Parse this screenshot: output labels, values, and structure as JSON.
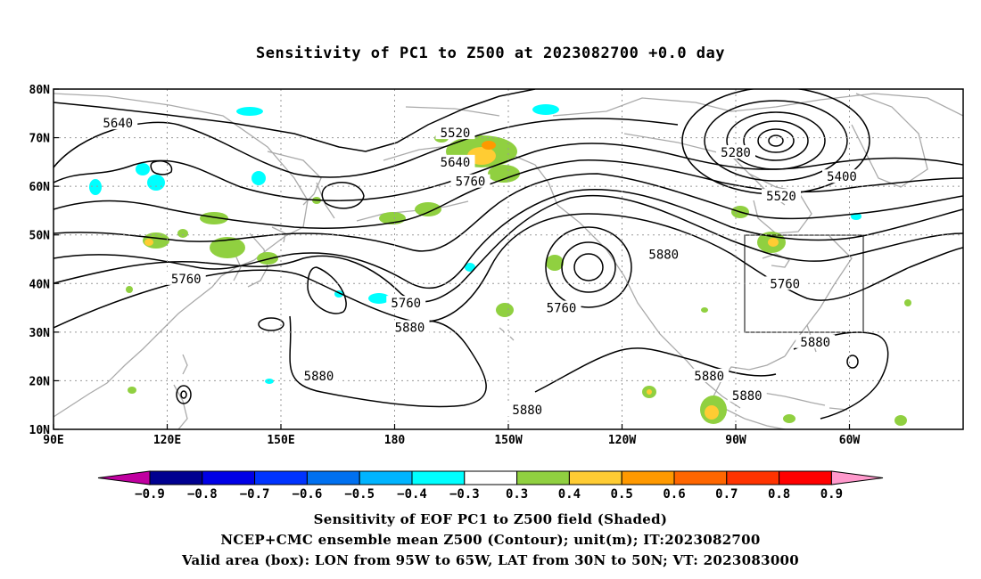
{
  "title": "Sensitivity of PC1 to Z500 at 2023082700 +0.0 day",
  "map": {
    "lat_labels": [
      "80N",
      "70N",
      "60N",
      "50N",
      "40N",
      "30N",
      "20N",
      "10N"
    ],
    "lon_labels": [
      "90E",
      "120E",
      "150E",
      "180",
      "150W",
      "120W",
      "90W",
      "60W"
    ],
    "lon_range": [
      "90E",
      "30W"
    ],
    "lat_range": [
      "10N",
      "80N"
    ],
    "grid": "dotted",
    "contour_labels": [
      {
        "text": "5640",
        "lon": 107,
        "lat": 73
      },
      {
        "text": "5520",
        "lon": 196,
        "lat": 71
      },
      {
        "text": "5640",
        "lon": 196,
        "lat": 65
      },
      {
        "text": "5760",
        "lon": 200,
        "lat": 61
      },
      {
        "text": "5280",
        "lon": 270,
        "lat": 67
      },
      {
        "text": "5400",
        "lon": 298,
        "lat": 62
      },
      {
        "text": "5520",
        "lon": 282,
        "lat": 58
      },
      {
        "text": "5760",
        "lon": 125,
        "lat": 41
      },
      {
        "text": "5760",
        "lon": 183,
        "lat": 36
      },
      {
        "text": "5880",
        "lon": 184,
        "lat": 31
      },
      {
        "text": "5760",
        "lon": 224,
        "lat": 35
      },
      {
        "text": "5880",
        "lon": 251,
        "lat": 46
      },
      {
        "text": "5760",
        "lon": 283,
        "lat": 40
      },
      {
        "text": "5880",
        "lon": 160,
        "lat": 21
      },
      {
        "text": "5880",
        "lon": 215,
        "lat": 14
      },
      {
        "text": "5880",
        "lon": 263,
        "lat": 21
      },
      {
        "text": "5880",
        "lon": 273,
        "lat": 17
      },
      {
        "text": "5880",
        "lon": 291,
        "lat": 28
      }
    ],
    "valid_box": {
      "lon_from": 265,
      "lon_to": 295,
      "lat_from": 30,
      "lat_to": 50
    }
  },
  "colorbar": {
    "labels": [
      "−0.9",
      "−0.8",
      "−0.7",
      "−0.6",
      "−0.5",
      "−0.4",
      "−0.3",
      "0.3",
      "0.4",
      "0.5",
      "0.6",
      "0.7",
      "0.8",
      "0.9"
    ],
    "colors": [
      "#000090",
      "#0000e6",
      "#0033ff",
      "#0070f0",
      "#00b4ff",
      "#00ffff",
      "#ffffff",
      "#90d040",
      "#ffcc33",
      "#ff9900",
      "#ff6600",
      "#ff3300",
      "#ff0000"
    ],
    "end_low_color": "#c000a0",
    "end_high_color": "#ff99cc"
  },
  "captions": [
    "Sensitivity of EOF PC1 to Z500 field (Shaded)",
    "NCEP+CMC ensemble mean Z500 (Contour); unit(m); IT:2023082700",
    "Valid area (box): LON from 95W to 65W, LAT from 30N to 50N; VT: 2023083000"
  ]
}
